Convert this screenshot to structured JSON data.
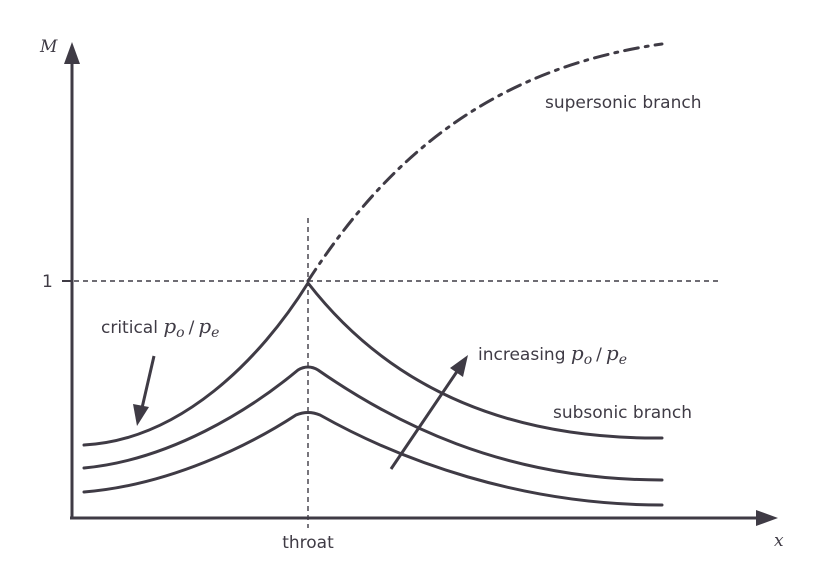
{
  "axes": {
    "y_label": "M",
    "x_label": "x",
    "y_tick": "1",
    "x_tick": "throat"
  },
  "labels": {
    "supersonic": "supersonic branch",
    "subsonic": "subsonic branch",
    "critical_prefix": "critical ",
    "increasing_prefix": "increasing ",
    "ratio_p": "p",
    "ratio_o": "o",
    "ratio_slash": "/",
    "ratio_e": "e"
  },
  "colors": {
    "ink": "#3f3b45",
    "background": "#ffffff"
  }
}
